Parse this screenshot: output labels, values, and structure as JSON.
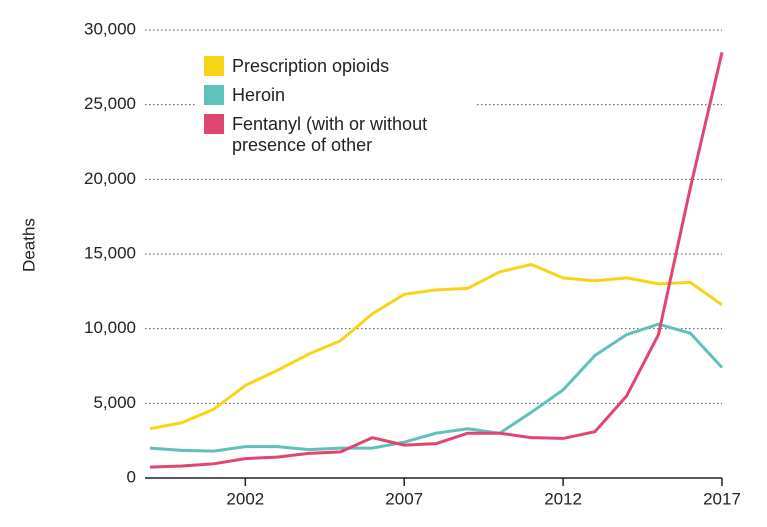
{
  "chart_data": {
    "type": "line",
    "y_label": "Deaths",
    "x": [
      1999,
      2000,
      2001,
      2002,
      2003,
      2004,
      2005,
      2006,
      2007,
      2008,
      2009,
      2010,
      2011,
      2012,
      2013,
      2014,
      2015,
      2016,
      2017
    ],
    "xlim": [
      1999,
      2017
    ],
    "xticks": [
      2002,
      2007,
      2012,
      2017
    ],
    "ylim": [
      0,
      30000
    ],
    "yticks": [
      0,
      {
        "value": 5000,
        "label": "5,000"
      },
      {
        "value": 10000,
        "label": "10,000"
      },
      {
        "value": 15000,
        "label": "15,000"
      },
      {
        "value": 20000,
        "label": "20,000"
      },
      {
        "value": 25000,
        "label": "25,000"
      },
      {
        "value": 30000,
        "label": "30,000"
      }
    ],
    "grid": true,
    "series": [
      {
        "name": "Prescription opioids",
        "color": "#f7d417",
        "values": [
          3300,
          3700,
          4600,
          6200,
          7200,
          8300,
          9200,
          11000,
          12300,
          12600,
          12700,
          13800,
          14300,
          13400,
          13200,
          13400,
          13000,
          13100,
          11600
        ]
      },
      {
        "name": "Heroin",
        "color": "#5fc1bb",
        "values": [
          2000,
          1850,
          1800,
          2100,
          2100,
          1900,
          2000,
          2000,
          2400,
          3000,
          3300,
          3000,
          4400,
          5900,
          8200,
          9600,
          10300,
          9700,
          7400
        ]
      },
      {
        "name": "Fentanyl (with or without presence of other",
        "color": "#e0466f",
        "values": [
          730,
          800,
          950,
          1300,
          1400,
          1650,
          1750,
          2700,
          2200,
          2300,
          3000,
          3000,
          2700,
          2650,
          3100,
          5500,
          9600,
          19400,
          28500
        ]
      }
    ]
  }
}
